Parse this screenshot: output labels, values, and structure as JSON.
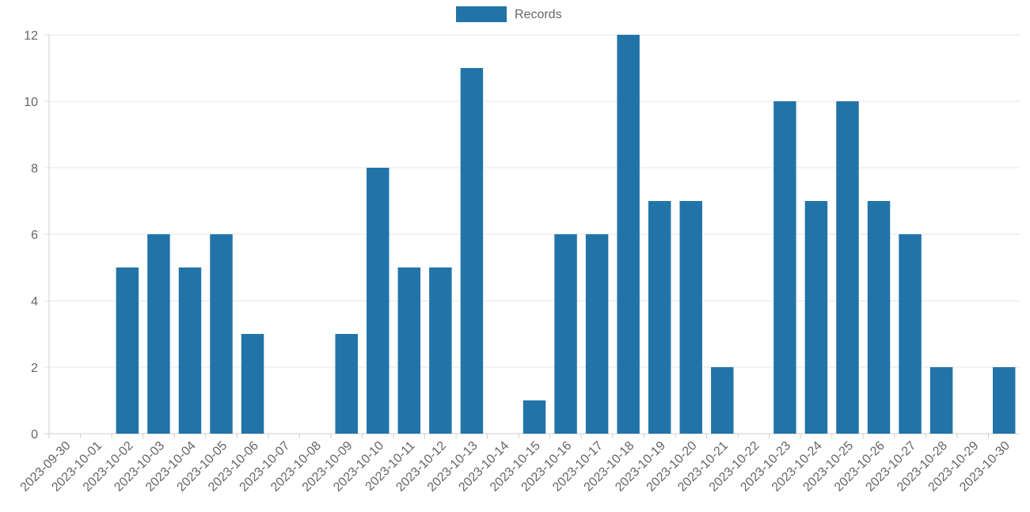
{
  "chart_data": {
    "type": "bar",
    "legend": {
      "position": "top",
      "label": "Records"
    },
    "categories": [
      "2023-09-30",
      "2023-10-01",
      "2023-10-02",
      "2023-10-03",
      "2023-10-04",
      "2023-10-05",
      "2023-10-06",
      "2023-10-07",
      "2023-10-08",
      "2023-10-09",
      "2023-10-10",
      "2023-10-11",
      "2023-10-12",
      "2023-10-13",
      "2023-10-14",
      "2023-10-15",
      "2023-10-16",
      "2023-10-17",
      "2023-10-18",
      "2023-10-19",
      "2023-10-20",
      "2023-10-21",
      "2023-10-22",
      "2023-10-23",
      "2023-10-24",
      "2023-10-25",
      "2023-10-26",
      "2023-10-27",
      "2023-10-28",
      "2023-10-29",
      "2023-10-30"
    ],
    "series": [
      {
        "name": "Records",
        "color": "#2274a8",
        "values": [
          0,
          0,
          5,
          6,
          5,
          6,
          3,
          0,
          0,
          3,
          8,
          5,
          5,
          11,
          0,
          1,
          6,
          6,
          12,
          7,
          7,
          2,
          0,
          10,
          7,
          10,
          7,
          6,
          2,
          0,
          2
        ]
      }
    ],
    "ylim": [
      0,
      12
    ],
    "yticks": [
      0,
      2,
      4,
      6,
      8,
      10,
      12
    ],
    "grid": true
  }
}
